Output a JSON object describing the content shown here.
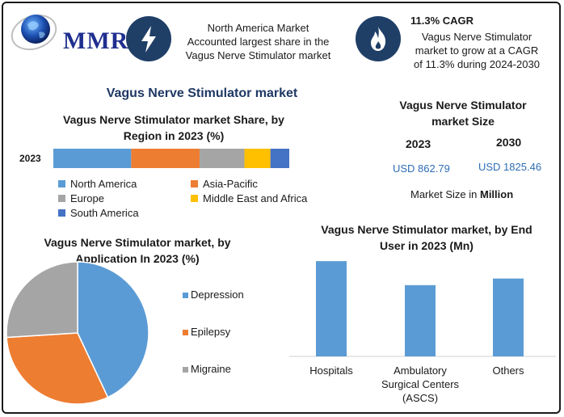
{
  "brand": {
    "logo_text": "MMR"
  },
  "highlights": [
    {
      "icon": "lightning-bolt-icon",
      "text_lines": [
        "North America Market",
        "Accounted largest share in the",
        "Vagus Nerve Stimulator market"
      ]
    },
    {
      "icon": "flame-icon",
      "title": "11.3% CAGR",
      "text_lines": [
        "Vagus Nerve Stimulator",
        "market to grow at a CAGR",
        "of 11.3% during 2024-2030"
      ]
    }
  ],
  "main_title": "Vagus Nerve Stimulator market",
  "colors": {
    "blue": "#5b9bd5",
    "orange": "#ed7d31",
    "gray": "#a5a5a5",
    "yellow": "#ffc000",
    "darkblue": "#4472c4",
    "accent": "#1f3864",
    "badge": "#1f3f67"
  },
  "region_share": {
    "title_lines": [
      "Vagus Nerve Stimulator market Share, by",
      "Region in 2023 (%)"
    ],
    "legend": [
      "North America",
      "Asia-Pacific",
      "Europe",
      "Middle East and Africa",
      "South America"
    ]
  },
  "market_size": {
    "title_lines": [
      "Vagus Nerve Stimulator",
      "market Size"
    ],
    "years": [
      "2023",
      "2030"
    ],
    "values": [
      "USD 862.79",
      "USD 1825.46"
    ],
    "note_prefix": "Market Size in ",
    "note_bold": "Million"
  },
  "application": {
    "title_lines": [
      "Vagus Nerve Stimulator market, by",
      "Application In 2023 (%)"
    ]
  },
  "end_user": {
    "title_lines": [
      "Vagus Nerve Stimulator market, by End",
      "User in 2023 (Mn)"
    ],
    "category_lines": [
      [
        "Hospitals"
      ],
      [
        "Ambulatory",
        "Surgical Centers",
        "(ASCS)"
      ],
      [
        "Others"
      ]
    ]
  },
  "chart_data": [
    {
      "type": "bar",
      "orientation": "horizontal-stacked",
      "title": "Vagus Nerve Stimulator market Share, by Region in 2023 (%)",
      "categories": [
        "2023"
      ],
      "series": [
        {
          "name": "North America",
          "values": [
            33
          ],
          "color": "#5b9bd5"
        },
        {
          "name": "Asia-Pacific",
          "values": [
            29
          ],
          "color": "#ed7d31"
        },
        {
          "name": "Europe",
          "values": [
            19
          ],
          "color": "#a5a5a5"
        },
        {
          "name": "Middle East and Africa",
          "values": [
            11
          ],
          "color": "#ffc000"
        },
        {
          "name": "South America",
          "values": [
            8
          ],
          "color": "#4472c4"
        }
      ],
      "legend_position": "bottom"
    },
    {
      "type": "pie",
      "title": "Vagus Nerve Stimulator market, by Application In 2023 (%)",
      "labels": [
        "Depression",
        "Epilepsy",
        "Migraine"
      ],
      "values": [
        43,
        31,
        26
      ],
      "colors": [
        "#5b9bd5",
        "#ed7d31",
        "#a5a5a5"
      ],
      "legend_position": "right"
    },
    {
      "type": "bar",
      "title": "Vagus Nerve Stimulator market, by End User in 2023 (Mn)",
      "categories": [
        "Hospitals",
        "Ambulatory Surgical Centers (ASCS)",
        "Others"
      ],
      "values": [
        115,
        86,
        94
      ],
      "color": "#5b9bd5",
      "ylim": [
        0,
        120
      ],
      "grid": false
    }
  ]
}
